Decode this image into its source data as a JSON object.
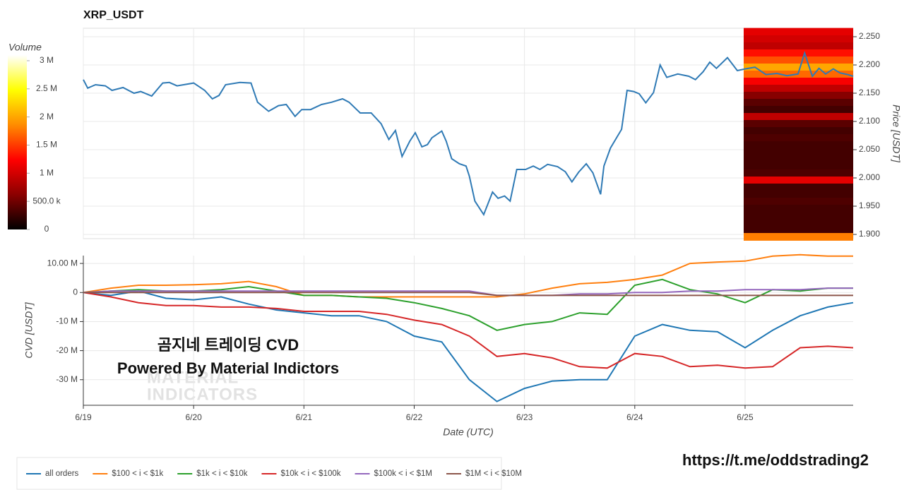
{
  "chart_data": [
    {
      "type": "line",
      "title": "XRP_USDT",
      "y_label": "Price [USDT]",
      "x": [
        0,
        0.04,
        0.11,
        0.2,
        0.26,
        0.36,
        0.46,
        0.52,
        0.62,
        0.72,
        0.78,
        0.85,
        0.91,
        1,
        1.1,
        1.17,
        1.23,
        1.29,
        1.42,
        1.52,
        1.58,
        1.68,
        1.77,
        1.84,
        1.92,
        1.98,
        2.06,
        2.16,
        2.25,
        2.35,
        2.41,
        2.51,
        2.61,
        2.7,
        2.77,
        2.83,
        2.89,
        2.96,
        3.01,
        3.07,
        3.12,
        3.16,
        3.25,
        3.29,
        3.34,
        3.41,
        3.47,
        3.5,
        3.55,
        3.63,
        3.71,
        3.76,
        3.82,
        3.87,
        3.93,
        4.01,
        4.08,
        4.14,
        4.21,
        4.3,
        4.37,
        4.43,
        4.49,
        4.56,
        4.62,
        4.69,
        4.72,
        4.78,
        4.88,
        4.93,
        4.99,
        5.04,
        5.1,
        5.17,
        5.23,
        5.29,
        5.39,
        5.49,
        5.55,
        5.62,
        5.68,
        5.74,
        5.84,
        5.93,
        6,
        6.09,
        6.19,
        6.29,
        6.38,
        6.48,
        6.54,
        6.61,
        6.67,
        6.73,
        6.8,
        6.86,
        6.93,
        6.98
      ],
      "series": [
        {
          "color": "#2f7ab5",
          "values": [
            2.174,
            2.159,
            2.165,
            2.163,
            2.155,
            2.16,
            2.15,
            2.153,
            2.145,
            2.168,
            2.169,
            2.163,
            2.165,
            2.168,
            2.155,
            2.14,
            2.146,
            2.165,
            2.169,
            2.168,
            2.134,
            2.118,
            2.128,
            2.13,
            2.109,
            2.121,
            2.121,
            2.13,
            2.134,
            2.14,
            2.134,
            2.115,
            2.115,
            2.096,
            2.068,
            2.084,
            2.038,
            2.065,
            2.08,
            2.055,
            2.059,
            2.071,
            2.083,
            2.065,
            2.034,
            2.025,
            2.021,
            2.003,
            1.959,
            1.935,
            1.975,
            1.964,
            1.968,
            1.959,
            2.015,
            2.015,
            2.021,
            2.015,
            2.024,
            2.02,
            2.011,
            1.993,
            2.01,
            2.025,
            2.009,
            1.971,
            2.021,
            2.053,
            2.086,
            2.155,
            2.153,
            2.149,
            2.133,
            2.151,
            2.2,
            2.178,
            2.184,
            2.18,
            2.174,
            2.188,
            2.205,
            2.194,
            2.213,
            2.19,
            2.193,
            2.196,
            2.183,
            2.185,
            2.181,
            2.184,
            2.221,
            2.18,
            2.194,
            2.184,
            2.193,
            2.186,
            2.183,
            2.18
          ]
        }
      ],
      "xlim": [
        0,
        6.98
      ],
      "xticks": [
        0,
        1,
        2,
        3,
        4,
        5,
        6
      ],
      "ylim": [
        1.8925,
        2.265
      ],
      "yticks": [
        {
          "value": 1.9,
          "label": "1.900"
        },
        {
          "value": 1.95,
          "label": "1.950"
        },
        {
          "value": 2,
          "label": "2.000"
        },
        {
          "value": 2.05,
          "label": "2.050"
        },
        {
          "value": 2.1,
          "label": "2.100"
        },
        {
          "value": 2.15,
          "label": "2.150"
        },
        {
          "value": 2.2,
          "label": "2.200"
        },
        {
          "value": 2.25,
          "label": "2.250"
        }
      ],
      "grid": true,
      "heatmap": {
        "levels": [
          2.259,
          2.246,
          2.234,
          2.221,
          2.209,
          2.196,
          2.184,
          2.171,
          2.159,
          2.146,
          2.134,
          2.121,
          2.109,
          2.096,
          2.084,
          2.071,
          2.059,
          2.046,
          2.034,
          2.021,
          2.009,
          1.996,
          1.984,
          1.971,
          1.959,
          1.946,
          1.934,
          1.921,
          1.909,
          1.896
        ],
        "volumes": [
          1.1,
          1.0,
          0.9,
          1.3,
          1.6,
          2.0,
          1.7,
          1.2,
          0.9,
          0.6,
          0.4,
          0.3,
          0.9,
          0.4,
          0.3,
          0.35,
          0.3,
          0.3,
          0.3,
          0.3,
          0.35,
          1.1,
          0.3,
          0.3,
          0.35,
          0.3,
          0.3,
          0.3,
          0.3,
          1.8
        ]
      },
      "colorbar": {
        "title": "Volume",
        "clim": [
          0,
          3.1
        ],
        "colorscale": [
          "#000000",
          "#8b0000",
          "#ff0000",
          "#ff8c00",
          "#ffff00",
          "#ffffff"
        ],
        "ticks": [
          0,
          {
            "value": 0.5,
            "label": "500.0 k"
          },
          {
            "value": 1,
            "label": "1 M"
          },
          {
            "value": 1.5,
            "label": "1.5 M"
          },
          {
            "value": 2,
            "label": "2 M"
          },
          {
            "value": 2.5,
            "label": "2.5 M"
          },
          {
            "value": 3,
            "label": "3 M"
          }
        ]
      }
    },
    {
      "type": "line",
      "x_label": "Date (UTC)",
      "y_label": "CVD [USDT]",
      "x": [
        0,
        0.25,
        0.5,
        0.75,
        1,
        1.25,
        1.5,
        1.75,
        2,
        2.25,
        2.5,
        2.75,
        3,
        3.25,
        3.5,
        3.75,
        4,
        4.25,
        4.5,
        4.75,
        5,
        5.25,
        5.5,
        5.75,
        6,
        6.25,
        6.5,
        6.75,
        6.98
      ],
      "series": [
        {
          "name": "all orders",
          "color": "#1f77b4",
          "values": [
            0,
            -1,
            0.5,
            -2,
            -2.5,
            -1.5,
            -4,
            -6,
            -7,
            -8,
            -8,
            -10,
            -15,
            -17,
            -30,
            -37.5,
            -33,
            -30.5,
            -30,
            -30,
            -15,
            -11,
            -13,
            -13.5,
            -19,
            -13,
            -8,
            -5,
            -3.5
          ]
        },
        {
          "name": "$100 < i < $1k",
          "color": "#ff7f0e",
          "values": [
            0,
            1.5,
            2.5,
            2.5,
            2.7,
            3,
            3.8,
            2,
            -1,
            -1,
            -1.5,
            -1.5,
            -1.5,
            -1.5,
            -1.5,
            -1.5,
            -0.5,
            1.5,
            3,
            3.5,
            4.5,
            6,
            10,
            10.5,
            10.8,
            12.5,
            13,
            12.5,
            12.5
          ]
        },
        {
          "name": "$1k < i < $10k",
          "color": "#2ca02c",
          "values": [
            0,
            0.5,
            1,
            0.5,
            0.5,
            1,
            2,
            0.5,
            -1,
            -1,
            -1.5,
            -2,
            -3.5,
            -5.5,
            -8,
            -13,
            -11,
            -10,
            -7,
            -7.5,
            2.5,
            4.5,
            1,
            -0.5,
            -3.5,
            1,
            0.5,
            1.5,
            1.5
          ]
        },
        {
          "name": "$10k < i < $100k",
          "color": "#d62728",
          "values": [
            0,
            -1.5,
            -3.5,
            -4.5,
            -4.5,
            -5,
            -5,
            -5.5,
            -6.5,
            -6.5,
            -6.5,
            -7.5,
            -9.5,
            -11,
            -15,
            -22,
            -21,
            -22.5,
            -25.5,
            -26,
            -21,
            -22,
            -25.5,
            -25,
            -26,
            -25.5,
            -19,
            -18.5,
            -19
          ]
        },
        {
          "name": "$100k < i < $1M",
          "color": "#9467bd",
          "values": [
            0,
            0.5,
            0.5,
            0.5,
            0.5,
            0.5,
            0.5,
            0.5,
            0.5,
            0.5,
            0.5,
            0.5,
            0.5,
            0.5,
            0.5,
            -1,
            -1,
            -1,
            -0.5,
            -0.5,
            0,
            0,
            0.5,
            0.5,
            1,
            1,
            1,
            1.5,
            1.5
          ]
        },
        {
          "name": "$1M < i < $10M",
          "color": "#8c564b",
          "values": [
            0,
            0,
            0,
            0,
            0,
            0,
            0,
            0,
            0,
            0,
            0,
            0,
            0,
            0,
            0,
            -1,
            -1,
            -1,
            -1,
            -1,
            -1,
            -1,
            -1,
            -1,
            -1,
            -1,
            -1,
            -1,
            -1
          ]
        }
      ],
      "xlim": [
        0,
        6.98
      ],
      "xticks": [
        {
          "value": 0,
          "label": "6/19"
        },
        {
          "value": 1,
          "label": "6/20"
        },
        {
          "value": 2,
          "label": "6/21"
        },
        {
          "value": 3,
          "label": "6/22"
        },
        {
          "value": 4,
          "label": "6/23"
        },
        {
          "value": 5,
          "label": "6/24"
        },
        {
          "value": 6,
          "label": "6/25"
        }
      ],
      "ylim": [
        -38.8,
        12.7
      ],
      "yticks": [
        {
          "value": -30,
          "label": "-30 M"
        },
        {
          "value": -20,
          "label": "-20 M"
        },
        {
          "value": -10,
          "label": "-10 M"
        },
        0,
        {
          "value": 10,
          "label": "10.00 M"
        }
      ],
      "grid": true,
      "legend": "bottom",
      "annotations": [
        "곰지네 트레이딩 CVD",
        "Powered By Material Indictors"
      ],
      "watermark": [
        "MATERIAL",
        "INDICATORS"
      ]
    }
  ],
  "footer_link": "https://t.me/oddstrading2"
}
